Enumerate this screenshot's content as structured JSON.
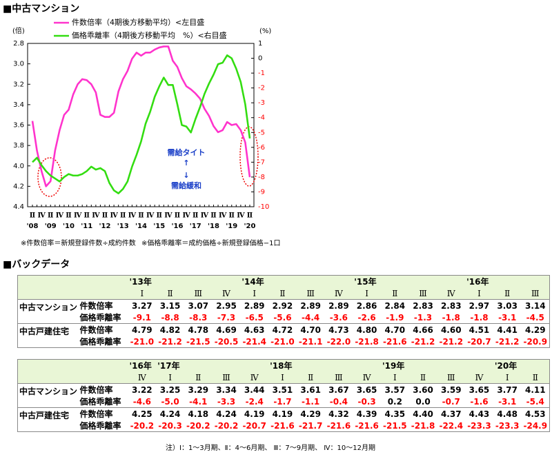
{
  "header": {
    "title": "■中古マンション"
  },
  "chart_data": {
    "type": "line",
    "y_label": "(倍)",
    "y2_label": "(%)",
    "categories": [
      "Ⅱ",
      null,
      "Ⅳ",
      null,
      "Ⅱ",
      null,
      "Ⅳ",
      null,
      "Ⅱ",
      null,
      "Ⅳ",
      null,
      "Ⅱ",
      null,
      "Ⅳ",
      null,
      "Ⅱ",
      null,
      "Ⅳ",
      null,
      "Ⅱ",
      null,
      "Ⅳ",
      null,
      "Ⅱ",
      null,
      "Ⅳ",
      null,
      "Ⅱ",
      null,
      "Ⅳ",
      null,
      "Ⅱ",
      null,
      "Ⅳ",
      null,
      "Ⅱ",
      null,
      "Ⅳ",
      null,
      "Ⅱ",
      null,
      "Ⅳ",
      null,
      "Ⅱ",
      null,
      "Ⅳ",
      null,
      "Ⅱ"
    ],
    "year_labels": [
      "'08",
      "'09",
      "'10",
      "'11",
      "'12",
      "'13",
      "'14",
      "'15",
      "'16",
      "'17",
      "'18",
      "'19",
      "'20"
    ],
    "series": [
      {
        "name": "件数倍率（4期後方移動平均）<左目盛",
        "color": "#ff33cc",
        "axis": "y",
        "values": [
          3.56,
          3.85,
          4.05,
          4.2,
          4.15,
          3.85,
          3.65,
          3.5,
          3.45,
          3.3,
          3.2,
          3.15,
          3.16,
          3.2,
          3.28,
          3.5,
          3.52,
          3.52,
          3.48,
          3.27,
          3.15,
          3.07,
          2.95,
          2.89,
          2.92,
          2.89,
          2.89,
          2.86,
          2.84,
          2.83,
          2.83,
          2.97,
          3.03,
          3.14,
          3.22,
          3.25,
          3.29,
          3.34,
          3.44,
          3.51,
          3.61,
          3.67,
          3.65,
          3.57,
          3.6,
          3.59,
          3.65,
          3.77,
          4.11
        ]
      },
      {
        "name": "価格乖離率（4期後方移動平均　%）<右目盛",
        "color": "#33dd11",
        "axis": "y2",
        "values": [
          -7.0,
          -6.7,
          -7.2,
          -7.6,
          -7.9,
          -8.1,
          -8.3,
          -8.0,
          -7.8,
          -7.9,
          -7.9,
          -7.8,
          -7.6,
          -7.3,
          -7.5,
          -7.4,
          -7.6,
          -8.4,
          -8.9,
          -9.1,
          -8.8,
          -8.3,
          -7.3,
          -6.5,
          -5.6,
          -4.4,
          -3.6,
          -2.6,
          -1.9,
          -1.3,
          -1.8,
          -1.8,
          -3.1,
          -4.5,
          -4.6,
          -5.0,
          -4.1,
          -3.3,
          -2.4,
          -1.7,
          -1.1,
          -0.4,
          -0.3,
          0.2,
          0.0,
          -0.7,
          -1.6,
          -3.1,
          -5.4
        ]
      }
    ],
    "ylim": [
      2.8,
      4.4
    ],
    "y_inverted": true,
    "yticks": [
      2.8,
      {
        "value": 3,
        "label": "3.0"
      },
      3.2,
      3.4,
      3.6,
      3.8,
      {
        "value": 4,
        "label": "4.0"
      },
      4.2,
      4.4
    ],
    "y2lim": [
      -10,
      1
    ],
    "y2ticks": [
      1,
      0,
      -1,
      -2,
      -3,
      -4,
      -5,
      -6,
      -7,
      -8,
      -9,
      -10
    ],
    "annotations": [
      "需給タイト",
      "↑",
      "↓",
      "需給緩和"
    ],
    "grid": false
  },
  "chart_notes": [
    "※件数倍率＝新規登録件数÷成約件数",
    "※価格乖離率＝成約価格÷新規登録価格−1口"
  ],
  "backdata_title": "■バックデータ",
  "negative_color": "#ff0000",
  "tables": [
    {
      "years": [
        "'13年",
        null,
        null,
        null,
        "'14年",
        null,
        null,
        null,
        "'15年",
        null,
        null,
        null,
        "'16年",
        null,
        null
      ],
      "quarters": [
        "Ⅰ",
        "Ⅱ",
        "Ⅲ",
        "Ⅳ",
        "Ⅰ",
        "Ⅱ",
        "Ⅲ",
        "Ⅳ",
        "Ⅰ",
        "Ⅱ",
        "Ⅲ",
        "Ⅳ",
        "Ⅰ",
        "Ⅱ",
        "Ⅲ"
      ],
      "groups": [
        {
          "name": "中古マンション",
          "rows": [
            {
              "metric": "件数倍率",
              "cells": [
                "3.27",
                "3.15",
                "3.07",
                "2.95",
                "2.89",
                "2.92",
                "2.89",
                "2.89",
                "2.86",
                "2.84",
                "2.83",
                "2.83",
                "2.97",
                "3.03",
                "3.14"
              ]
            },
            {
              "metric": "価格乖離率",
              "cells": [
                "-9.1",
                "-8.8",
                "-8.3",
                "-7.3",
                "-6.5",
                "-5.6",
                "-4.4",
                "-3.6",
                "-2.6",
                "-1.9",
                "-1.3",
                "-1.8",
                "-1.8",
                "-3.1",
                "-4.5"
              ]
            }
          ]
        },
        {
          "name": "中古戸建住宅",
          "rows": [
            {
              "metric": "件数倍率",
              "cells": [
                "4.79",
                "4.82",
                "4.78",
                "4.69",
                "4.63",
                "4.72",
                "4.70",
                "4.73",
                "4.80",
                "4.70",
                "4.66",
                "4.60",
                "4.51",
                "4.41",
                "4.29"
              ]
            },
            {
              "metric": "価格乖離率",
              "cells": [
                "-21.0",
                "-21.2",
                "-21.5",
                "-20.5",
                "-21.4",
                "-21.0",
                "-21.1",
                "-22.0",
                "-21.8",
                "-21.6",
                "-21.2",
                "-21.2",
                "-20.7",
                "-21.2",
                "-20.9"
              ]
            }
          ]
        }
      ]
    },
    {
      "years": [
        "'16年",
        "'17年",
        null,
        null,
        null,
        "'18年",
        null,
        null,
        null,
        "'19年",
        null,
        null,
        null,
        "'20年",
        null
      ],
      "quarters": [
        "Ⅳ",
        "Ⅰ",
        "Ⅱ",
        "Ⅲ",
        "Ⅳ",
        "Ⅰ",
        "Ⅱ",
        "Ⅲ",
        "Ⅳ",
        "Ⅰ",
        "Ⅱ",
        "Ⅲ",
        "Ⅳ",
        "Ⅰ",
        "Ⅱ"
      ],
      "groups": [
        {
          "name": "中古マンション",
          "rows": [
            {
              "metric": "件数倍率",
              "cells": [
                "3.22",
                "3.25",
                "3.29",
                "3.34",
                "3.44",
                "3.51",
                "3.61",
                "3.67",
                "3.65",
                "3.57",
                "3.60",
                "3.59",
                "3.65",
                "3.77",
                "4.11"
              ]
            },
            {
              "metric": "価格乖離率",
              "cells": [
                "-4.6",
                "-5.0",
                "-4.1",
                "-3.3",
                "-2.4",
                "-1.7",
                "-1.1",
                "-0.4",
                "-0.3",
                "0.2",
                "0.0",
                "-0.7",
                "-1.6",
                "-3.1",
                "-5.4"
              ]
            }
          ]
        },
        {
          "name": "中古戸建住宅",
          "rows": [
            {
              "metric": "件数倍率",
              "cells": [
                "4.25",
                "4.24",
                "4.18",
                "4.24",
                "4.19",
                "4.19",
                "4.29",
                "4.32",
                "4.39",
                "4.35",
                "4.40",
                "4.37",
                "4.43",
                "4.48",
                "4.53"
              ]
            },
            {
              "metric": "価格乖離率",
              "cells": [
                "-20.2",
                "-20.3",
                "-20.2",
                "-20.2",
                "-20.7",
                "-21.6",
                "-21.7",
                "-21.6",
                "-21.6",
                "-21.5",
                "-21.8",
                "-22.4",
                "-23.3",
                "-23.3",
                "-24.9"
              ]
            }
          ]
        }
      ]
    }
  ],
  "table_note": "注）Ⅰ：1～3月期、Ⅱ：4～6月期、 Ⅲ：7～9月期、 Ⅳ：10～12月期"
}
